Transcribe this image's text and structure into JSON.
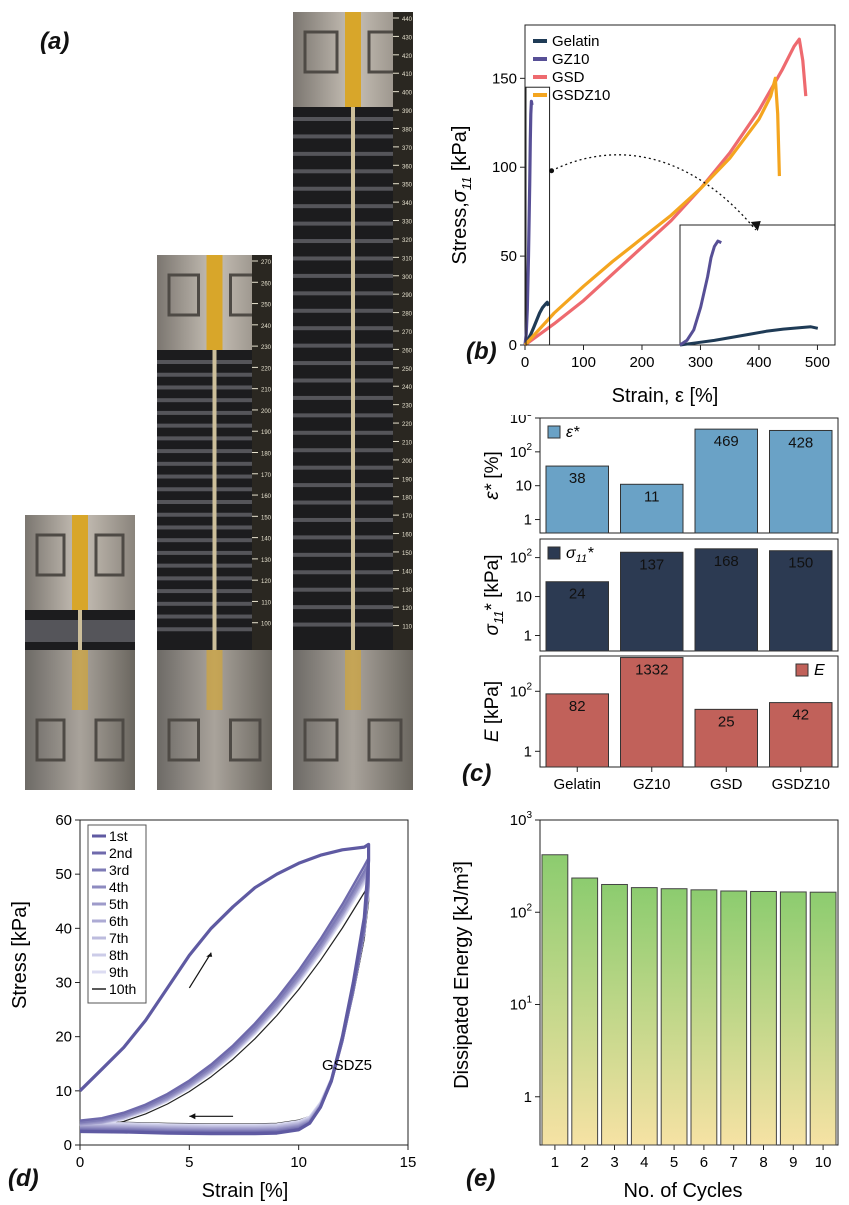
{
  "panel_labels": {
    "a": "(a)",
    "b": "(b)",
    "c": "(c)",
    "d": "(d)",
    "e": "(e)"
  },
  "colors": {
    "gelatin": "#1f3b56",
    "gz10": "#574f96",
    "gsd": "#ee6a6f",
    "gsdz10": "#f4a51f",
    "eps_bar": "#6aa2c6",
    "sigma_bar": "#2c3a52",
    "e_bar": "#c1615a",
    "cycle_dark": "#5f5aa2",
    "cycle_light": "#dcdcf2",
    "cycle_last": "#222222",
    "bar_top": "#8ccc6f",
    "bar_bottom": "#f6e2a4"
  },
  "photos": {
    "description_icons": [
      "grip-clamp-icon",
      "ruler-scale-icon"
    ],
    "ruler_ticks_tall": [
      "440",
      "430",
      "420",
      "410",
      "400",
      "390",
      "380",
      "370",
      "360",
      "350",
      "340",
      "330",
      "320",
      "310",
      "300",
      "290",
      "280",
      "270",
      "260",
      "250",
      "240",
      "230",
      "220",
      "210",
      "200",
      "190",
      "180",
      "170",
      "160",
      "150",
      "140",
      "130",
      "120",
      "110"
    ],
    "ruler_ticks_mid": [
      "270",
      "260",
      "250",
      "240",
      "230",
      "220",
      "210",
      "200",
      "190",
      "180",
      "170",
      "160",
      "150",
      "140",
      "130",
      "120",
      "110",
      "100"
    ]
  },
  "chart_data": [
    {
      "id": "b",
      "type": "line",
      "xlabel": "Strain, ε [%]",
      "ylabel": "Stress, σ11 [kPa]",
      "ylabel_main": "Stress,",
      "ylabel_sym": "σ",
      "ylabel_sub": "11",
      "ylabel_unit": " [kPa]",
      "xlim": [
        0,
        530
      ],
      "ylim": [
        0,
        180
      ],
      "xticks": [
        "0",
        "100",
        "200",
        "300",
        "400",
        "500"
      ],
      "yticks": [
        "0",
        "50",
        "100",
        "150"
      ],
      "legend_position": "top-left",
      "series": [
        {
          "name": "Gelatin",
          "color_key": "gelatin",
          "x": [
            0,
            5,
            10,
            15,
            20,
            25,
            30,
            35,
            38,
            40
          ],
          "y": [
            0,
            3,
            6,
            10,
            14,
            18,
            21,
            23,
            24,
            22
          ]
        },
        {
          "name": "GZ10",
          "color_key": "gz10",
          "x": [
            0,
            2,
            4,
            6,
            8,
            9,
            10,
            11,
            12
          ],
          "y": [
            0,
            6,
            20,
            50,
            90,
            115,
            130,
            137,
            135
          ]
        },
        {
          "name": "GSD",
          "color_key": "gsd",
          "x": [
            0,
            50,
            100,
            150,
            200,
            250,
            300,
            350,
            400,
            440,
            460,
            469,
            475,
            480
          ],
          "y": [
            0,
            12,
            25,
            40,
            55,
            70,
            88,
            108,
            132,
            155,
            168,
            172,
            160,
            140
          ]
        },
        {
          "name": "GSDZ10",
          "color_key": "gsdz10",
          "x": [
            0,
            50,
            100,
            150,
            200,
            250,
            300,
            350,
            400,
            420,
            428,
            432,
            435
          ],
          "y": [
            0,
            18,
            33,
            47,
            60,
            73,
            88,
            105,
            127,
            140,
            150,
            130,
            95
          ]
        }
      ],
      "inset": {
        "xlim": [
          0,
          45
        ],
        "ylim": [
          0,
          145
        ],
        "note": "zoom of 0–40 % strain region"
      }
    },
    {
      "id": "c",
      "type": "bar",
      "categories": [
        "Gelatin",
        "GZ10",
        "GSD",
        "GSDZ10"
      ],
      "yscale": "log",
      "subplots": [
        {
          "legend": "ε*",
          "ylabel": "ε* [%]",
          "ylabel_main": "ε*",
          "ylabel_unit": " [%]",
          "color_key": "eps_bar",
          "values": [
            38,
            11,
            469,
            428
          ],
          "labels": [
            "38",
            "11",
            "469",
            "428"
          ],
          "yticks": [
            "1",
            "10",
            "10²",
            "10³"
          ],
          "ylim": [
            0.4,
            1000
          ],
          "legend_position": "top-left"
        },
        {
          "legend": "σ11*",
          "ylabel": "σ11* [kPa]",
          "ylabel_main": "σ",
          "ylabel_sub": "11",
          "ylabel_unit": "* [kPa]",
          "legend_main": "σ",
          "legend_sub": "11",
          "legend_sup": "*",
          "color_key": "sigma_bar",
          "values": [
            24,
            137,
            168,
            150
          ],
          "labels": [
            "24",
            "137",
            "168",
            "150"
          ],
          "yticks": [
            "1",
            "10",
            "10²"
          ],
          "ylim": [
            0.4,
            300
          ],
          "legend_position": "top-left"
        },
        {
          "legend": "E",
          "ylabel": "E [kPa]",
          "ylabel_main": "E",
          "ylabel_unit": " [kPa]",
          "color_key": "e_bar",
          "values": [
            82,
            1332,
            25,
            42
          ],
          "labels": [
            "82",
            "1332",
            "25",
            "42"
          ],
          "yticks": [
            "1",
            "10²"
          ],
          "ylim": [
            0.3,
            1500
          ],
          "legend_position": "top-right"
        }
      ]
    },
    {
      "id": "d",
      "type": "line",
      "xlabel": "Strain [%]",
      "ylabel": "Stress [kPa]",
      "xlim": [
        0,
        15
      ],
      "ylim": [
        0,
        60
      ],
      "xticks": [
        "0",
        "5",
        "10",
        "15"
      ],
      "yticks": [
        "0",
        "10",
        "20",
        "30",
        "40",
        "50",
        "60"
      ],
      "annotation": "GSDZ5",
      "legend_position": "top-left",
      "series_names": [
        "1st",
        "2nd",
        "3rd",
        "4th",
        "5th",
        "6th",
        "7th",
        "8th",
        "9th",
        "10th"
      ],
      "loading_first": {
        "x": [
          0,
          1,
          2,
          3,
          4,
          5,
          6,
          7,
          8,
          9,
          10,
          11,
          12,
          13,
          13.2
        ],
        "y": [
          10,
          14,
          18,
          23,
          29,
          35,
          40,
          44,
          47.5,
          50,
          52,
          53.5,
          54.5,
          55,
          55.5
        ]
      },
      "unloading": {
        "x": [
          13.2,
          13,
          12.5,
          12,
          11.5,
          11,
          10.5,
          10,
          9,
          8,
          6,
          4,
          2,
          0
        ],
        "y": [
          52,
          42,
          30,
          20,
          12,
          7,
          4,
          2.8,
          2.2,
          2.1,
          2.1,
          2.2,
          2.4,
          2.5
        ]
      },
      "reload_peaks": [
        55.5,
        53,
        52,
        51.5,
        51,
        50.8,
        50.5,
        50.2,
        49.8,
        48
      ],
      "reload_start": [
        10,
        4.5,
        4.2,
        4.0,
        3.8,
        3.7,
        3.6,
        3.5,
        3.4,
        3.0
      ]
    },
    {
      "id": "e",
      "type": "bar",
      "xlabel": "No. of Cycles",
      "ylabel": "Dissipated Energy [kJ/m³]",
      "yscale": "log",
      "ylim": [
        0.3,
        1000
      ],
      "yticks": [
        "1",
        "10¹",
        "10²",
        "10³"
      ],
      "categories": [
        "1",
        "2",
        "3",
        "4",
        "5",
        "6",
        "7",
        "8",
        "9",
        "10"
      ],
      "values": [
        420,
        235,
        200,
        185,
        180,
        175,
        170,
        168,
        166,
        165
      ]
    }
  ]
}
